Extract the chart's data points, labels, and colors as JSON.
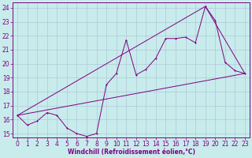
{
  "xlabel": "Windchill (Refroidissement éolien,°C)",
  "bg_color": "#c8ecec",
  "grid_color": "#b0c8d8",
  "line_color": "#800080",
  "xlim": [
    -0.5,
    23.5
  ],
  "ylim": [
    14.7,
    24.4
  ],
  "xticks": [
    0,
    1,
    2,
    3,
    4,
    5,
    6,
    7,
    8,
    9,
    10,
    11,
    12,
    13,
    14,
    15,
    16,
    17,
    18,
    19,
    20,
    21,
    22,
    23
  ],
  "yticks": [
    15,
    16,
    17,
    18,
    19,
    20,
    21,
    22,
    23,
    24
  ],
  "line1_x": [
    0,
    1,
    2,
    3,
    4,
    5,
    6,
    7,
    8,
    9,
    10,
    11,
    12,
    13,
    14,
    15,
    16,
    17,
    18,
    19,
    20,
    21,
    22,
    23
  ],
  "line1_y": [
    16.3,
    15.6,
    15.9,
    16.5,
    16.3,
    15.4,
    15.0,
    14.8,
    15.0,
    18.5,
    19.3,
    21.7,
    19.2,
    19.6,
    20.4,
    21.8,
    21.8,
    21.9,
    21.5,
    24.1,
    23.1,
    20.1,
    19.5,
    19.3
  ],
  "line2_x": [
    0,
    23
  ],
  "line2_y": [
    16.3,
    19.3
  ],
  "line3_x": [
    0,
    19,
    23
  ],
  "line3_y": [
    16.3,
    24.1,
    19.3
  ],
  "xlabel_fontsize": 5.5,
  "tick_fontsize": 5.5,
  "lw": 0.7,
  "ms": 2.0
}
